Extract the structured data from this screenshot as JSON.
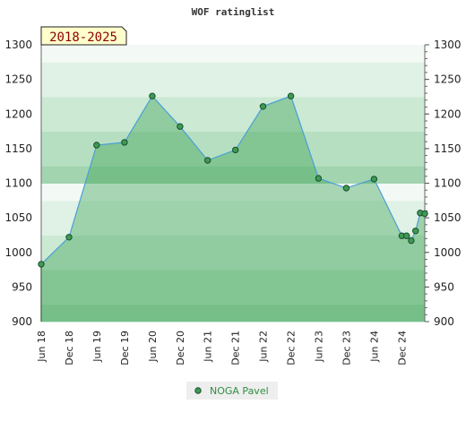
{
  "chart_data": {
    "type": "line",
    "title": "WOF ratinglist",
    "period_label": "2018-2025",
    "xlabel": "",
    "ylabel": "",
    "ylim": [
      900,
      1300
    ],
    "y_ticks": [
      900,
      950,
      1000,
      1050,
      1100,
      1150,
      1200,
      1250,
      1300
    ],
    "x_ticks": [
      "Jun 18",
      "Dec 18",
      "Jun 19",
      "Dec 19",
      "Jun 20",
      "Dec 20",
      "Jun 21",
      "Dec 21",
      "Jun 22",
      "Dec 22",
      "Jun 23",
      "Dec 23",
      "Jun 24",
      "Dec 24"
    ],
    "grid": "horizontal bands",
    "legend_position": "bottom-center",
    "series": [
      {
        "name": "NOGA Pavel",
        "color": "#2f8f43",
        "x": [
          "2018-06-01",
          "2018-12-01",
          "2019-06-01",
          "2019-12-01",
          "2020-06-01",
          "2020-12-01",
          "2021-06-01",
          "2021-12-01",
          "2022-06-01",
          "2022-12-01",
          "2023-06-01",
          "2023-12-01",
          "2024-06-01",
          "2024-12-01",
          "2025-01-01",
          "2025-02-01",
          "2025-03-01",
          "2025-04-01",
          "2025-05-01"
        ],
        "values": [
          983,
          1022,
          1155,
          1159,
          1226,
          1182,
          1133,
          1148,
          1211,
          1226,
          1107,
          1093,
          1106,
          1024,
          1024,
          1017,
          1031,
          1057,
          1056
        ]
      }
    ]
  }
}
